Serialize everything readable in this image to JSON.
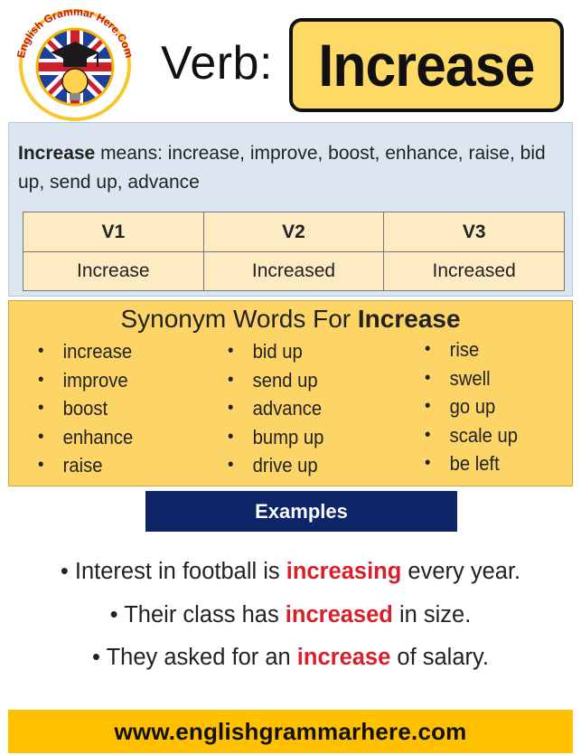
{
  "logo": {
    "text": "English Grammar Here.Com",
    "icon": "union-jack-graduation-cap-globe"
  },
  "header": {
    "verb_label": "Verb:",
    "word": "Increase"
  },
  "meaning": {
    "word": "Increase",
    "text": " means: increase, improve, boost, enhance, raise, bid up, send up, advance"
  },
  "forms": {
    "headers": [
      "V1",
      "V2",
      "V3"
    ],
    "values": [
      "Increase",
      "Increased",
      "Increased"
    ]
  },
  "synonyms": {
    "title_prefix": "Synonym Words For ",
    "title_word": "Increase",
    "columns": [
      [
        "increase",
        "improve",
        "boost",
        "enhance",
        "raise"
      ],
      [
        "bid up",
        "send up",
        "advance",
        "bump up",
        "drive up"
      ],
      [
        "rise",
        "swell",
        "go up",
        "scale up",
        "be left"
      ]
    ]
  },
  "examples": {
    "label": "Examples",
    "sentences": [
      {
        "bullet": "•",
        "before": " Interest in football is ",
        "highlight": "increasing",
        "after": " every year."
      },
      {
        "bullet": "•",
        "before": " Their class has ",
        "highlight": "increased",
        "after": " in size."
      },
      {
        "bullet": "•",
        "before": " They asked for an ",
        "highlight": "increase",
        "after": " of salary."
      }
    ]
  },
  "footer": {
    "url": "www.englishgrammarhere.com"
  },
  "colors": {
    "word_box": "#ffd966",
    "meaning_panel": "#dce6f1",
    "table_fill": "#fdebc4",
    "synonym_panel": "#fdd466",
    "examples_bar": "#0d2466",
    "highlight": "#d9202a",
    "footer": "#ffc000"
  }
}
